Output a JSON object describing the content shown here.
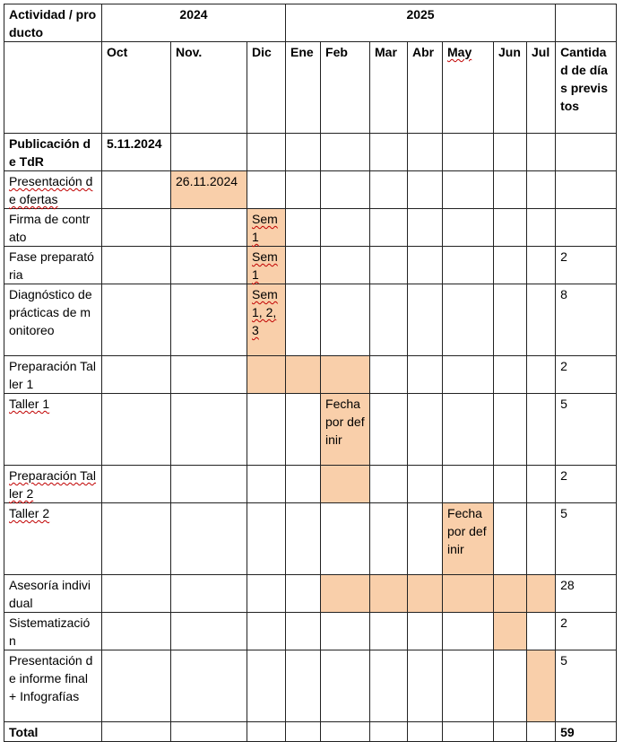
{
  "header": {
    "activity_label": "Actividad / producto",
    "year_2024": "2024",
    "year_2025": "2025",
    "months": [
      "Oct",
      "Nov.",
      "Dic",
      "Ene",
      "Feb",
      "Mar",
      "Abr",
      "May",
      "Jun",
      "Jul"
    ],
    "days_label": "Cantidad de días previstos"
  },
  "rows": [
    {
      "activity": "Publicación de TdR",
      "bold": true,
      "cells": [
        {
          "col": 0,
          "text": "5.11.2024",
          "shaded": false,
          "bold": true
        }
      ],
      "days": ""
    },
    {
      "activity": "Presentación de ofertas",
      "spell": true,
      "cells": [
        {
          "col": 1,
          "text": "26.11.2024",
          "shaded": true
        }
      ],
      "days": ""
    },
    {
      "activity": "Firma de contrato",
      "cells": [
        {
          "col": 2,
          "text": "Sem 1",
          "shaded": true
        }
      ],
      "days": ""
    },
    {
      "activity": "Fase preparatória",
      "cells": [
        {
          "col": 2,
          "text": "Sem 1",
          "shaded": true
        }
      ],
      "days": "2"
    },
    {
      "activity": "Diagnóstico de prácticas de monitoreo",
      "cells": [
        {
          "col": 2,
          "text": "Sem 1, 2, 3",
          "shaded": true
        }
      ],
      "days": "8"
    },
    {
      "activity": "Preparación Taller 1",
      "cells": [
        {
          "col": 2,
          "text": "",
          "shaded": true
        },
        {
          "col": 3,
          "text": "",
          "shaded": true
        },
        {
          "col": 4,
          "text": "",
          "shaded": true
        }
      ],
      "days": "2"
    },
    {
      "activity": "Taller 1",
      "spell": true,
      "cells": [
        {
          "col": 4,
          "text": "Fecha por definir",
          "shaded": true
        }
      ],
      "days": "5"
    },
    {
      "activity": "Preparación Taller 2",
      "spell": true,
      "cells": [
        {
          "col": 4,
          "text": "",
          "shaded": true
        }
      ],
      "days": "2"
    },
    {
      "activity": "Taller 2",
      "spell": true,
      "cells": [
        {
          "col": 7,
          "text": "Fecha por definir",
          "shaded": true
        }
      ],
      "days": "5"
    },
    {
      "activity": "Asesoría individual",
      "cells": [
        {
          "col": 4,
          "text": "",
          "shaded": true
        },
        {
          "col": 5,
          "text": "",
          "shaded": true
        },
        {
          "col": 6,
          "text": "",
          "shaded": true
        },
        {
          "col": 7,
          "text": "",
          "shaded": true
        },
        {
          "col": 8,
          "text": "",
          "shaded": true
        },
        {
          "col": 9,
          "text": "",
          "shaded": true
        }
      ],
      "days": "28"
    },
    {
      "activity": "Sistematización",
      "cells": [
        {
          "col": 8,
          "text": "",
          "shaded": true
        }
      ],
      "days": "2"
    },
    {
      "activity": "Presentación de informe final + Infografías",
      "cells": [
        {
          "col": 9,
          "text": "",
          "shaded": true
        }
      ],
      "days": "5"
    }
  ],
  "total": {
    "label": "Total",
    "days": "59"
  }
}
